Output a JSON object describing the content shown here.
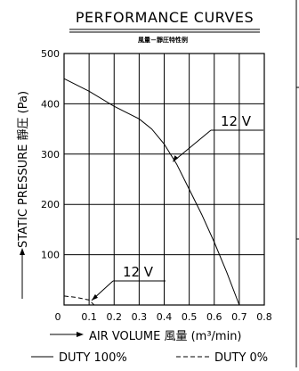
{
  "chart_data": {
    "type": "line",
    "title": "PERFORMANCE CURVES",
    "subtitle": "風量－靜圧特性例",
    "xlabel": "AIR VOLUME 風量 (m³/min)",
    "ylabel": "STATIC PRESSURE 靜圧 (Pa)",
    "xlim": [
      0,
      0.8
    ],
    "ylim": [
      0,
      500
    ],
    "x_ticks": [
      "0",
      "0.1",
      "0.2",
      "0.3",
      "0.4",
      "0.5",
      "0.6",
      "0.7",
      "0.8"
    ],
    "y_ticks": [
      "100",
      "200",
      "300",
      "400",
      "500"
    ],
    "grid": true,
    "series": [
      {
        "name": "12 V",
        "style": "solid",
        "x": [
          0.0,
          0.1,
          0.2,
          0.3,
          0.35,
          0.4,
          0.45,
          0.5,
          0.55,
          0.6,
          0.65,
          0.7
        ],
        "y": [
          450,
          425,
          395,
          370,
          350,
          320,
          280,
          230,
          180,
          125,
          65,
          0
        ]
      },
      {
        "name": "12 V",
        "style": "dashed",
        "x": [
          0.0,
          0.05,
          0.1,
          0.12
        ],
        "y": [
          18,
          15,
          10,
          0
        ]
      }
    ],
    "annotations": [
      "12 V",
      "12 V"
    ],
    "legend": [
      {
        "label": "DUTY 100%",
        "style": "solid"
      },
      {
        "label": "DUTY 0%",
        "style": "dashed"
      }
    ]
  }
}
